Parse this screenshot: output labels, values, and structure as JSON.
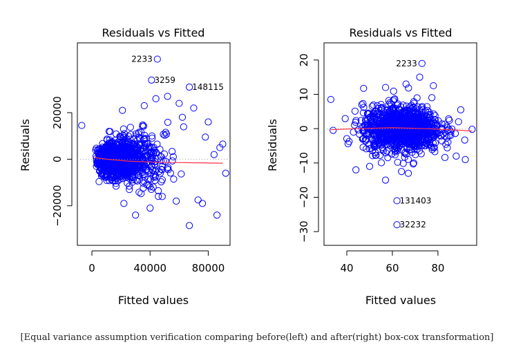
{
  "caption": "[Equal variance assumption verification comparing before(left) and after(right) box-cox transformation]",
  "colors": {
    "points": "#0000ff",
    "smoother": "#ff3344",
    "zeroline": "#9a9a9a"
  },
  "chart_data": [
    {
      "type": "scatter",
      "title": "Residuals vs Fitted",
      "xlabel": "Fitted values",
      "ylabel": "Residuals",
      "xlim": [
        -10000,
        95000
      ],
      "ylim": [
        -37000,
        50000
      ],
      "xticks": [
        0,
        40000,
        80000
      ],
      "yticks": [
        -20000,
        0,
        20000
      ],
      "xtick_labels": [
        "0",
        "40000",
        "80000"
      ],
      "ytick_labels": [
        "−20000",
        "0",
        "20000"
      ],
      "zero_line": true,
      "smoother": {
        "x": [
          2000,
          10000,
          25000,
          45000,
          65000,
          90000
        ],
        "y": [
          700,
          0,
          -800,
          -1300,
          -1500,
          -1700
        ]
      },
      "annotations": [
        {
          "label": "2233",
          "x": 45000,
          "y": 43000
        },
        {
          "label": "3259",
          "x": 41000,
          "y": 34000
        },
        {
          "label": "148115",
          "x": 67000,
          "y": 31000
        }
      ],
      "outliers": [
        {
          "x": 45000,
          "y": 43000
        },
        {
          "x": 41000,
          "y": 34000
        },
        {
          "x": 67000,
          "y": 31000
        },
        {
          "x": -7000,
          "y": 14500
        },
        {
          "x": 90000,
          "y": 6500
        },
        {
          "x": 88000,
          "y": 5000
        },
        {
          "x": 92000,
          "y": -6000
        },
        {
          "x": 86000,
          "y": -24000
        },
        {
          "x": 67000,
          "y": -28500
        },
        {
          "x": 30000,
          "y": -24000
        },
        {
          "x": 22000,
          "y": -19000
        },
        {
          "x": 76000,
          "y": -19000
        },
        {
          "x": 73000,
          "y": -17500
        },
        {
          "x": 40000,
          "y": -21000
        },
        {
          "x": 58000,
          "y": -18000
        },
        {
          "x": 80000,
          "y": 16000
        },
        {
          "x": 78000,
          "y": 9500
        },
        {
          "x": 84000,
          "y": 2000
        },
        {
          "x": 70000,
          "y": 22000
        },
        {
          "x": 60000,
          "y": 24000
        },
        {
          "x": 52000,
          "y": 27000
        },
        {
          "x": 36000,
          "y": 23000
        },
        {
          "x": 44000,
          "y": 26000
        },
        {
          "x": 21000,
          "y": 21000
        }
      ],
      "cloud": {
        "x_center": 22000,
        "x_spread": 18000,
        "y_spread": 6000,
        "count": 1100
      }
    },
    {
      "type": "scatter",
      "title": "Residuals vs Fitted",
      "xlabel": "Fitted values",
      "ylabel": "Residuals",
      "xlim": [
        30,
        97
      ],
      "ylim": [
        -34,
        25
      ],
      "xticks": [
        40,
        60,
        80
      ],
      "yticks": [
        -30,
        -20,
        -10,
        0,
        10,
        20
      ],
      "xtick_labels": [
        "40",
        "60",
        "80"
      ],
      "ytick_labels": [
        "−30",
        "−20",
        "−10",
        "0",
        "10",
        "20"
      ],
      "zero_line": true,
      "smoother": {
        "x": [
          33,
          45,
          60,
          75,
          88,
          95
        ],
        "y": [
          -0.3,
          0.0,
          0.3,
          0.0,
          -0.4,
          -0.7
        ]
      },
      "annotations": [
        {
          "label": "2233",
          "x": 73,
          "y": 19
        },
        {
          "label": "131403",
          "x": 62,
          "y": -21
        },
        {
          "label": "32232",
          "x": 62,
          "y": -28
        }
      ],
      "outliers": [
        {
          "x": 73,
          "y": 19
        },
        {
          "x": 62,
          "y": -21
        },
        {
          "x": 62,
          "y": -28
        },
        {
          "x": 33,
          "y": 8.5
        },
        {
          "x": 34,
          "y": -0.5
        },
        {
          "x": 95,
          "y": -0.2
        },
        {
          "x": 92,
          "y": -9
        },
        {
          "x": 90,
          "y": 5.5
        },
        {
          "x": 88,
          "y": -8
        },
        {
          "x": 57,
          "y": -15
        },
        {
          "x": 67,
          "y": -13
        },
        {
          "x": 64,
          "y": -12.5
        },
        {
          "x": 44,
          "y": -12
        },
        {
          "x": 50,
          "y": -11
        },
        {
          "x": 72,
          "y": 15
        },
        {
          "x": 66,
          "y": 13
        },
        {
          "x": 57,
          "y": 12
        },
        {
          "x": 78,
          "y": 12.5
        }
      ],
      "cloud": {
        "x_center": 64,
        "x_spread": 14,
        "y_spread": 3.3,
        "count": 1100
      }
    }
  ]
}
